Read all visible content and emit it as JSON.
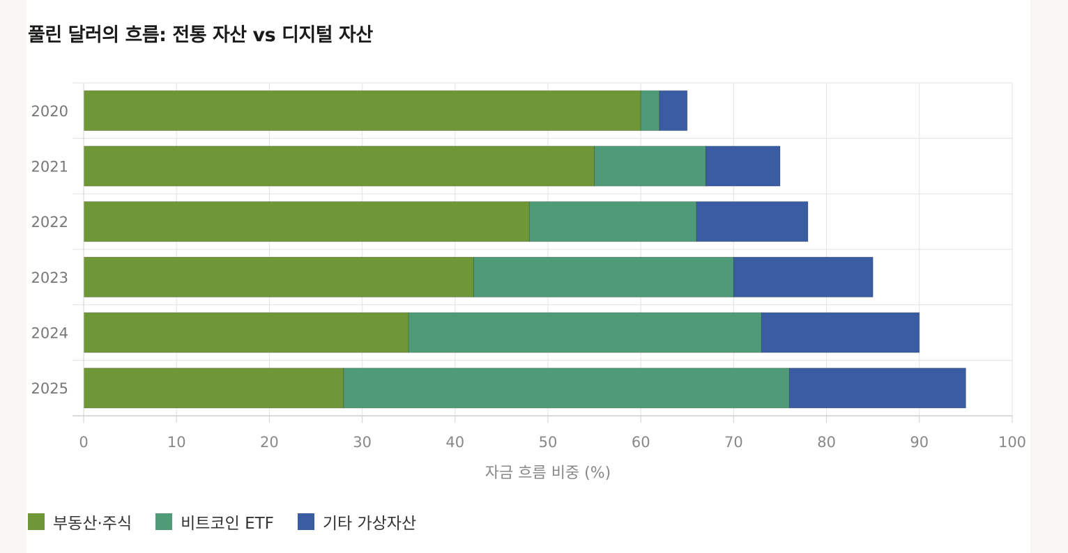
{
  "chart_data": {
    "type": "bar",
    "orientation": "horizontal",
    "stacked": true,
    "title": "풀린 달러의 흐름: 전통 자산 vs 디지털 자산",
    "xlabel": "자금 흐름 비중 (%)",
    "ylabel": "",
    "xlim": [
      0,
      100
    ],
    "xticks": [
      "0",
      "10",
      "20",
      "30",
      "40",
      "50",
      "60",
      "70",
      "80",
      "90",
      "100"
    ],
    "categories": [
      "2020",
      "2021",
      "2022",
      "2023",
      "2024",
      "2025"
    ],
    "series": [
      {
        "name": "부동산·주식",
        "color": "#6f9637",
        "values": [
          60,
          55,
          48,
          42,
          35,
          28
        ]
      },
      {
        "name": "비트코인 ETF",
        "color": "#4f9b78",
        "values": [
          2,
          12,
          18,
          28,
          38,
          48
        ]
      },
      {
        "name": "기타 가상자산",
        "color": "#3a5ca3",
        "values": [
          3,
          8,
          12,
          15,
          17,
          19
        ]
      }
    ],
    "grid": true,
    "legend_position": "bottom-left"
  }
}
